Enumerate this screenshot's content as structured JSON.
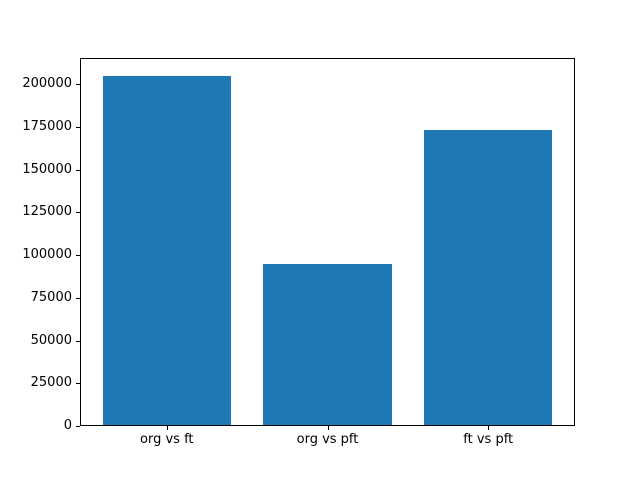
{
  "chart_data": {
    "type": "bar",
    "title": "",
    "xlabel": "",
    "ylabel": "",
    "categories": [
      "org vs ft",
      "org vs pft",
      "ft vs pft"
    ],
    "values": [
      205000,
      95000,
      173000
    ],
    "yticks": [
      0,
      25000,
      50000,
      75000,
      100000,
      125000,
      150000,
      175000,
      200000
    ],
    "ylim": [
      0,
      215250
    ],
    "bar_color": "#1f77b4",
    "grid": false,
    "legend": null,
    "background_color": "#ffffff",
    "frame_color": "#000000"
  }
}
